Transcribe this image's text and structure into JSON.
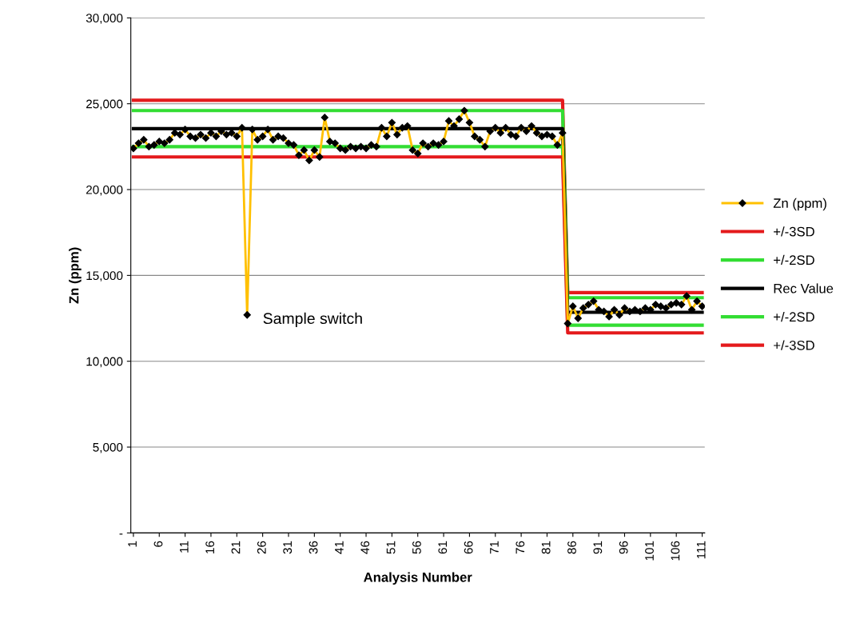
{
  "chart_data": {
    "type": "line",
    "xlabel": "Analysis Number",
    "ylabel": "Zn (ppm)",
    "xlim": [
      0.5,
      111.5
    ],
    "xticks": [
      1,
      6,
      11,
      16,
      21,
      26,
      31,
      36,
      41,
      46,
      51,
      56,
      61,
      66,
      71,
      76,
      81,
      86,
      91,
      96,
      101,
      106,
      111
    ],
    "ylim": [
      0,
      30000
    ],
    "yticks": [
      {
        "value": 0,
        "label": "-"
      },
      {
        "value": 5000,
        "label": "5,000"
      },
      {
        "value": 10000,
        "label": "10,000"
      },
      {
        "value": 15000,
        "label": "15,000"
      },
      {
        "value": 20000,
        "label": "20,000"
      },
      {
        "value": 25000,
        "label": "25,000"
      },
      {
        "value": 30000,
        "label": "30,000"
      }
    ],
    "grid": "y",
    "legend": "right",
    "line_style": "solid",
    "series": [
      {
        "name": "Zn (ppm)",
        "color": "#ffc000",
        "marker": "diamond",
        "x": [
          1,
          2,
          3,
          4,
          5,
          6,
          7,
          8,
          9,
          10,
          11,
          12,
          13,
          14,
          15,
          16,
          17,
          18,
          19,
          20,
          21,
          22,
          23,
          24,
          25,
          26,
          27,
          28,
          29,
          30,
          31,
          32,
          33,
          34,
          35,
          36,
          37,
          38,
          39,
          40,
          41,
          42,
          43,
          44,
          45,
          46,
          47,
          48,
          49,
          50,
          51,
          52,
          53,
          54,
          55,
          56,
          57,
          58,
          59,
          60,
          61,
          62,
          63,
          64,
          65,
          66,
          67,
          68,
          69,
          70,
          71,
          72,
          73,
          74,
          75,
          76,
          77,
          78,
          79,
          80,
          81,
          82,
          83,
          84,
          85,
          86,
          87,
          88,
          89,
          90,
          91,
          92,
          93,
          94,
          95,
          96,
          97,
          98,
          99,
          100,
          101,
          102,
          103,
          104,
          105,
          106,
          107,
          108,
          109,
          110,
          111
        ],
        "values": [
          22400,
          22700,
          22900,
          22500,
          22600,
          22800,
          22700,
          22900,
          23300,
          23200,
          23500,
          23100,
          23000,
          23200,
          23000,
          23300,
          23100,
          23400,
          23200,
          23300,
          23100,
          23600,
          12700,
          23500,
          22900,
          23100,
          23500,
          22900,
          23100,
          23000,
          22700,
          22600,
          22000,
          22300,
          21700,
          22300,
          21900,
          24200,
          22800,
          22700,
          22400,
          22300,
          22500,
          22400,
          22500,
          22400,
          22600,
          22500,
          23600,
          23100,
          23900,
          23200,
          23600,
          23700,
          22300,
          22100,
          22700,
          22500,
          22700,
          22600,
          22800,
          24000,
          23700,
          24100,
          24600,
          23900,
          23100,
          22900,
          22500,
          23400,
          23600,
          23300,
          23600,
          23200,
          23100,
          23600,
          23400,
          23700,
          23300,
          23100,
          23200,
          23100,
          22600,
          23300,
          12200,
          13200,
          12500,
          13100,
          13300,
          13500,
          13000,
          12900,
          12600,
          13000,
          12700,
          13100,
          12900,
          13000,
          12900,
          13100,
          13000,
          13300,
          13200,
          13100,
          13300,
          13400,
          13300,
          13800,
          13000,
          13500,
          13200
        ]
      },
      {
        "name": "+/-3SD",
        "color": "#e41a1c",
        "x": [
          1,
          84,
          85,
          111
        ],
        "values": [
          25200,
          25200,
          14000,
          14000
        ]
      },
      {
        "name": "+/-2SD",
        "color": "#33dd33",
        "x": [
          1,
          84,
          85,
          111
        ],
        "values": [
          24600,
          24600,
          13700,
          13700
        ]
      },
      {
        "name": "Rec Value",
        "color": "#000000",
        "x": [
          1,
          84,
          85,
          111
        ],
        "values": [
          23550,
          23550,
          12850,
          12850
        ]
      },
      {
        "name": "+/-2SD",
        "color": "#33dd33",
        "x": [
          1,
          84,
          85,
          111
        ],
        "values": [
          22500,
          22500,
          12100,
          12100
        ]
      },
      {
        "name": "+/-3SD",
        "color": "#e41a1c",
        "x": [
          1,
          84,
          85,
          111
        ],
        "values": [
          21900,
          21900,
          11650,
          11650
        ]
      }
    ],
    "annotations": [
      {
        "text": "Sample switch",
        "x": 23,
        "y": 12700
      }
    ]
  }
}
